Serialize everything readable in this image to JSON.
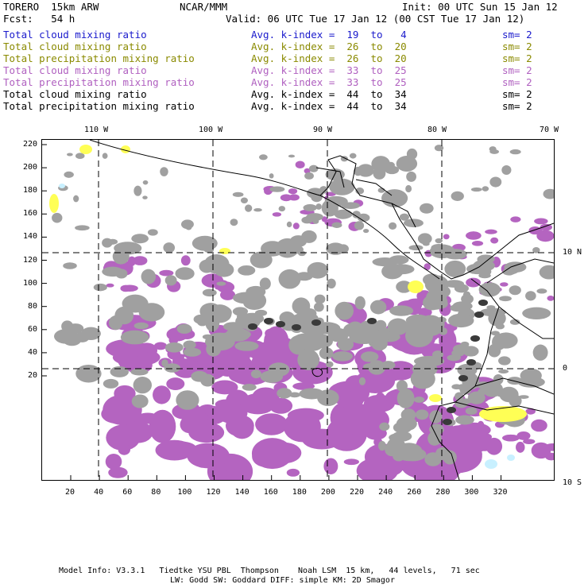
{
  "header": {
    "model": "TORERO  15km ARW",
    "org": "NCAR/MMM",
    "init": "Init: 00 UTC Sun 15 Jan 12",
    "fcst": "Fcst:   54 h",
    "valid": "Valid: 06 UTC Tue 17 Jan 12 (00 CST Tue 17 Jan 12)"
  },
  "legend": [
    {
      "field": "Total cloud mixing ratio",
      "kindex": "Avg. k-index =  19  to   4",
      "sm": "sm= 2",
      "color": "#1a1acc"
    },
    {
      "field": "Total cloud mixing ratio",
      "kindex": "Avg. k-index =  26  to  20",
      "sm": "sm= 2",
      "color": "#8a8a00"
    },
    {
      "field": "Total precipitation mixing ratio",
      "kindex": "Avg. k-index =  26  to  20",
      "sm": "sm= 2",
      "color": "#8a8a00"
    },
    {
      "field": "Total cloud mixing ratio",
      "kindex": "Avg. k-index =  33  to  25",
      "sm": "sm= 2",
      "color": "#b060c0"
    },
    {
      "field": "Total precipitation mixing ratio",
      "kindex": "Avg. k-index =  33  to  25",
      "sm": "sm= 2",
      "color": "#b060c0"
    },
    {
      "field": "Total cloud mixing ratio",
      "kindex": "Avg. k-index =  44  to  34",
      "sm": "sm= 2",
      "color": "#000000"
    },
    {
      "field": "Total precipitation mixing ratio",
      "kindex": "Avg. k-index =  44  to  34",
      "sm": "sm= 2",
      "color": "#000000"
    }
  ],
  "map": {
    "lon_labels": [
      "110 W",
      "100 W",
      "90 W",
      "80 W",
      "70 W"
    ],
    "lat_labels": [
      "10 N",
      "0",
      "10 S"
    ],
    "x_ticks": [
      "20",
      "40",
      "60",
      "80",
      "100",
      "120",
      "140",
      "160",
      "180",
      "200",
      "220",
      "240",
      "260",
      "280",
      "300",
      "320"
    ],
    "y_ticks": [
      "220",
      "200",
      "180",
      "160",
      "140",
      "120",
      "100",
      "80",
      "60",
      "40",
      "20"
    ],
    "colors": {
      "gray": "#a0a0a0",
      "magenta": "#b464c0",
      "yellow": "#ffff55",
      "cyan": "#c8f0ff",
      "dark": "#3a3a3a"
    }
  },
  "footer": {
    "line1": "Model Info: V3.3.1   Tiedtke YSU PBL  Thompson    Noah LSM  15 km,   44 levels,   71 sec",
    "line2": "LW: Godd SW: Goddard DIFF: simple KM: 2D Smagor"
  }
}
